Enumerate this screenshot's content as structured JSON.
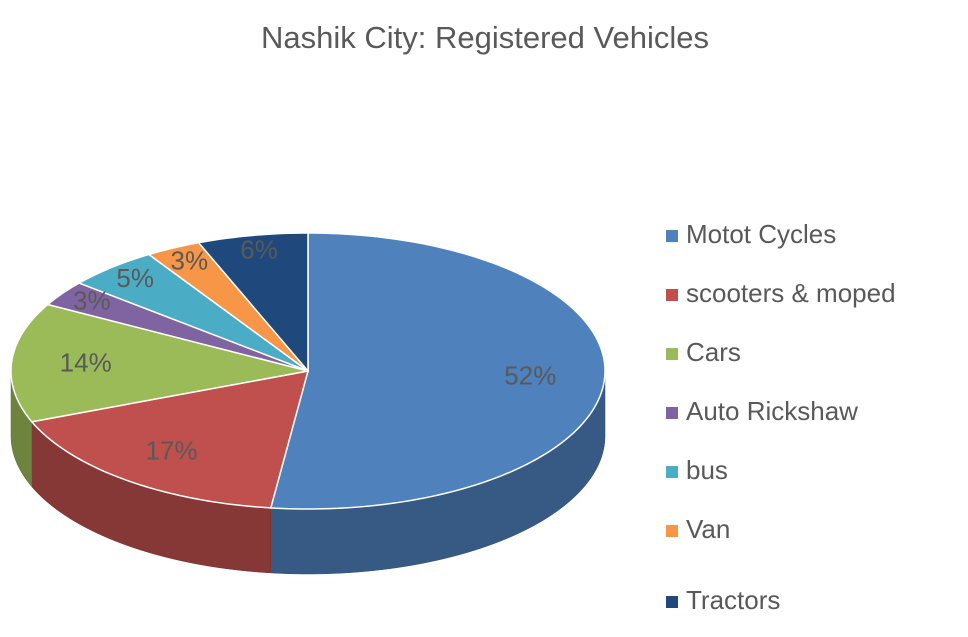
{
  "chart_data": {
    "type": "pie",
    "title": "Nashik City: Registered Vehicles",
    "categories": [
      "Motot Cycles",
      "scooters & moped",
      "Cars",
      "Auto Rickshaw",
      "bus",
      "Van",
      "Tractors"
    ],
    "values": [
      52,
      17,
      14,
      3,
      5,
      3,
      6
    ],
    "value_labels": [
      "52%",
      "17%",
      "14%",
      "3%",
      "5%",
      "3%",
      "6%"
    ],
    "colors": [
      "#4f81bd",
      "#c0504d",
      "#9bbb59",
      "#8064a2",
      "#4bacc6",
      "#f79646",
      "#1f497d"
    ],
    "legend": "right"
  }
}
